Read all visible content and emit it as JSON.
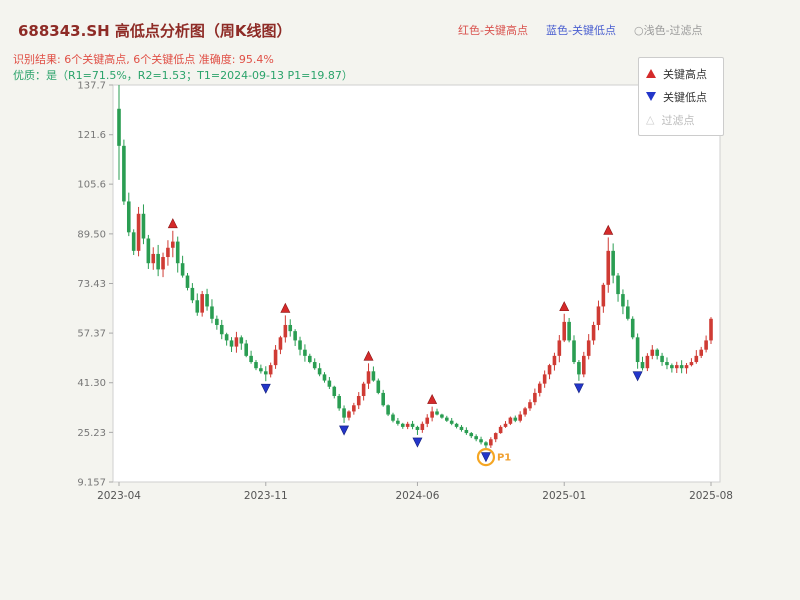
{
  "header": {
    "title": "688343.SH 高低点分析图（周K线图）",
    "legend_top": [
      {
        "label": "红色-关键高点",
        "color": "#d9534f"
      },
      {
        "label": "蓝色-关键低点",
        "color": "#4a5fd0"
      },
      {
        "label": "○浅色-过滤点",
        "color": "#9a9a9a"
      }
    ],
    "result_line": "识别结果: 6个关键高点, 6个关键低点  准确度: 95.4%",
    "quality_line": "优质：是（R1=71.5%，R2=1.53；T1=2024-09-13 P1=19.87）"
  },
  "legend_box": {
    "items": [
      {
        "label": "关键高点",
        "type": "up",
        "color": "#d42a2a"
      },
      {
        "label": "关键低点",
        "type": "down",
        "color": "#2336c9"
      },
      {
        "label": "过滤点",
        "type": "outline",
        "color": "#cccccc"
      }
    ]
  },
  "chart_data": {
    "type": "candlestick",
    "title": "688343.SH 高低点分析图（周K线图）",
    "x_tick_labels": [
      "2023-04",
      "2023-11",
      "2024-06",
      "2025-01",
      "2025-08"
    ],
    "x_tick_weeks": [
      0,
      30,
      61,
      91,
      121
    ],
    "y_tick_values": [
      137.7,
      121.6,
      105.6,
      89.5,
      73.43,
      57.37,
      41.3,
      25.23,
      9.157
    ],
    "y_tick_labels": [
      "137.7",
      "121.6",
      "105.6",
      "89.50",
      "73.43",
      "57.37",
      "41.30",
      "25.23",
      "9.157"
    ],
    "ylim": [
      9.157,
      137.7
    ],
    "grid": false,
    "legend_position": "upper right",
    "first_candle": {
      "open": 130,
      "close": 118,
      "high": 137.7,
      "low": 107
    },
    "closes": [
      118,
      100,
      90,
      84,
      96,
      88,
      80,
      83,
      78,
      82,
      85,
      87,
      80,
      76,
      72,
      68,
      64,
      70,
      66,
      62,
      60,
      57,
      55,
      53,
      56,
      54,
      50,
      48,
      46,
      45,
      44,
      47,
      52,
      56,
      60,
      58,
      55,
      52,
      50,
      48,
      46,
      44,
      42,
      40,
      37,
      33,
      30,
      32,
      34,
      37,
      41,
      45,
      42,
      38,
      34,
      31,
      29,
      28,
      27,
      28,
      27,
      26,
      28,
      30,
      32,
      31,
      30,
      29,
      28,
      27,
      26,
      25,
      24,
      23,
      22,
      21,
      23,
      25,
      27,
      28,
      30,
      29,
      31,
      33,
      35,
      38,
      41,
      44,
      47,
      50,
      55,
      61,
      55,
      48,
      44,
      50,
      55,
      60,
      66,
      73,
      84,
      76,
      70,
      66,
      62,
      56,
      48,
      46,
      50,
      52,
      50,
      48,
      47,
      46,
      47,
      46,
      47,
      48,
      50,
      52,
      55,
      62
    ],
    "key_high_weeks": [
      11,
      34,
      51,
      64,
      91,
      100
    ],
    "key_low_weeks": [
      30,
      46,
      61,
      75,
      94,
      106
    ],
    "p1_annotation": {
      "week": 75,
      "label": "P1",
      "price": 19.87,
      "date": "2024-09-13"
    },
    "colors": {
      "up": "#cf3b34",
      "down": "#2a9d52",
      "key_high": "#d42a2a",
      "key_low": "#2336c9",
      "p1_ring": "#f5a623",
      "p1_text": "#f0a030",
      "axis_text": "#777777",
      "x_axis_text": "#555555",
      "plot_border": "#cfcfcf",
      "plot_bg": "#ffffff",
      "page_bg": "#f4f4ef"
    }
  }
}
